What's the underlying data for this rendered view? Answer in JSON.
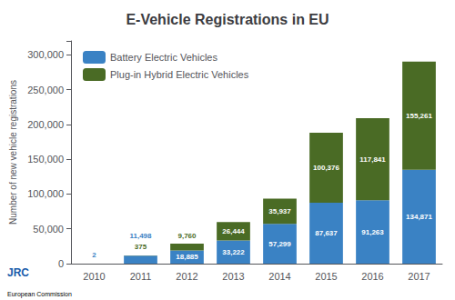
{
  "chart_data": {
    "type": "bar",
    "title": "E-Vehicle Registrations in EU",
    "ylabel": "Number of new vehicle registrations",
    "categories": [
      "2010",
      "2011",
      "2012",
      "2013",
      "2014",
      "2015",
      "2016",
      "2017"
    ],
    "series": [
      {
        "name": "Battery Electric Vehicles",
        "color": "#3a82c4",
        "values": [
          2,
          11498,
          18885,
          33222,
          57299,
          87637,
          91263,
          134871
        ],
        "value_labels": [
          "2",
          "11,498",
          "18,885",
          "33,222",
          "57,299",
          "87,637",
          "91,263",
          "134,871"
        ]
      },
      {
        "name": "Plug-in Hybrid Electric Vehicles",
        "color": "#4a6b25",
        "values": [
          0,
          375,
          9760,
          26444,
          35937,
          100376,
          117841,
          155261
        ],
        "value_labels": [
          null,
          "375",
          "9,760",
          "26,444",
          "35,937",
          "100,376",
          "117,841",
          "155,261"
        ]
      }
    ],
    "stacked": true,
    "data_labels": true,
    "ylim": [
      0,
      320000
    ],
    "yticks": [
      0,
      {
        "value": 50000,
        "label": "50,000"
      },
      {
        "value": 100000,
        "label": "100,000"
      },
      {
        "value": 150000,
        "label": "150,000"
      },
      {
        "value": 200000,
        "label": "200,000"
      },
      {
        "value": 250000,
        "label": "250,000"
      },
      {
        "value": 300000,
        "label": "300,000"
      }
    ],
    "grid": false,
    "legend": "upper left",
    "annotations": [
      "JRC",
      "European Commission"
    ]
  }
}
